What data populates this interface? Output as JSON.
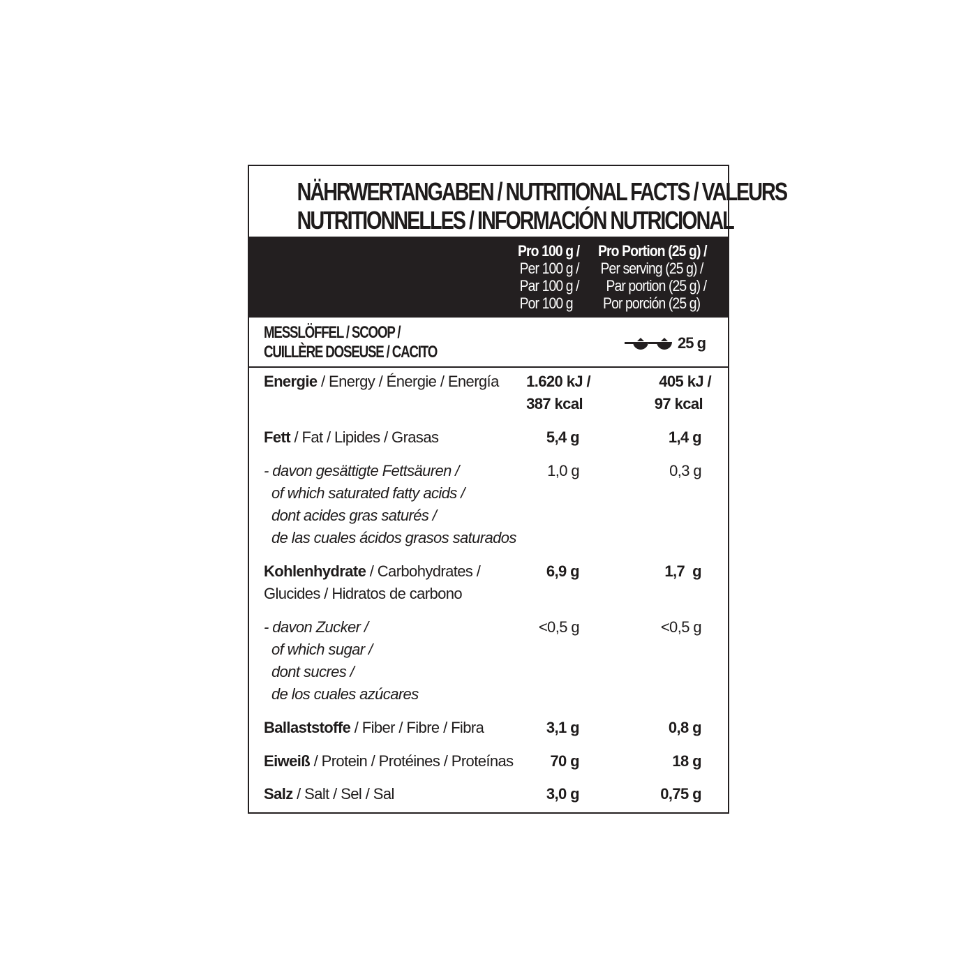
{
  "title": {
    "line1": "NÄHRWERTANGABEN / NUTRITIONAL FACTS / VALEURS",
    "line2": "NUTRITIONNELLES / INFORMACIÓN NUTRICIONAL"
  },
  "header": {
    "col1": [
      "Pro 100 g /",
      "Per 100 g /",
      "Par 100 g /",
      "Por 100 g"
    ],
    "col2": [
      "Pro Portion (25 g) /",
      "Per serving  (25 g) /",
      "Par portion (25 g) /",
      "Por porción (25 g)"
    ]
  },
  "scoop": {
    "label1": "MESSLÖFFEL / SCOOP /",
    "label2": "CUILLÈRE DOSEUSE / CACITO",
    "icon": "scoop-icon",
    "amount": "25 g"
  },
  "rows": {
    "energy": {
      "bold": "Energie",
      "rest": " / Energy / Énergie / Energía",
      "v1a": "1.620 kJ /",
      "v1b": "387 kcal",
      "v2a": "405 kJ /",
      "v2b": "97 kcal"
    },
    "fat": {
      "bold": "Fett",
      "rest": " / Fat / Lipides / Grasas",
      "v1": "5,4 g",
      "v2": "1,4 g"
    },
    "saturated": {
      "lines": [
        "- davon gesättigte Fettsäuren /",
        "of which saturated fatty acids /",
        "dont acides gras saturés /",
        "de las cuales ácidos grasos saturados"
      ],
      "v1": "1,0 g",
      "v2": "0,3 g"
    },
    "carbs": {
      "bold": "Kohlenhydrate",
      "rest": " / Carbohydrates /",
      "line2": "Glucides / Hidratos de carbono",
      "v1": "6,9 g",
      "v2": "1,7  g"
    },
    "sugar": {
      "lines": [
        "- davon Zucker /",
        "of which sugar /",
        "dont sucres /",
        "de los cuales azúcares"
      ],
      "v1": "<0,5 g",
      "v2": "<0,5 g"
    },
    "fiber": {
      "bold": "Ballaststoffe",
      "rest": " / Fiber / Fibre / Fibra",
      "v1": "3,1 g",
      "v2": "0,8 g"
    },
    "protein": {
      "bold": "Eiweiß",
      "rest": " / Protein / Protéines / Proteínas",
      "v1": "70 g",
      "v2": "18 g"
    },
    "salt": {
      "bold": "Salz",
      "rest": " / Salt / Sel / Sal",
      "v1": "3,0 g",
      "v2": "0,75 g"
    }
  }
}
